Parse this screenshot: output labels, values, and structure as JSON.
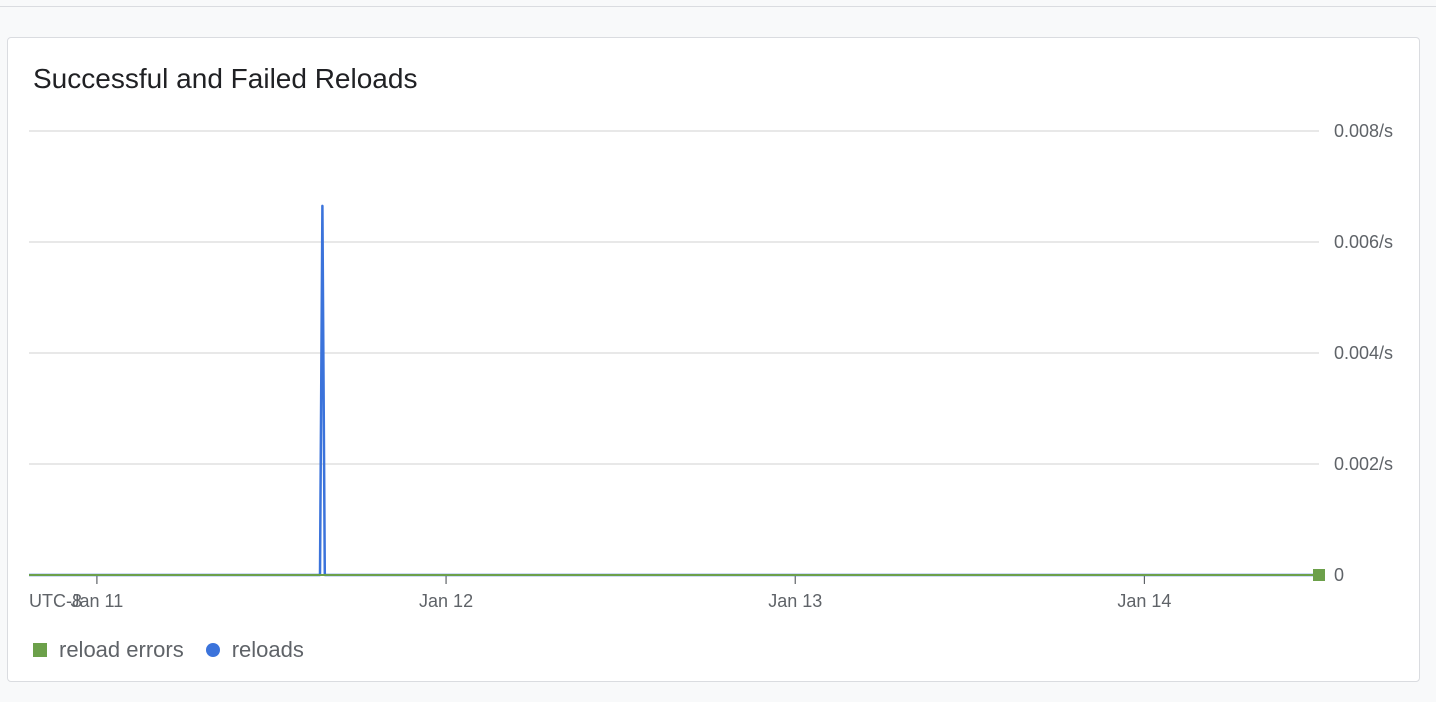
{
  "card": {
    "title": "Successful and Failed Reloads"
  },
  "colors": {
    "reload_errors": "#6ca04a",
    "reloads": "#3b73db",
    "grid": "#e0e0e0"
  },
  "legend": [
    {
      "label": "reload errors",
      "shape": "square",
      "color": "#6ca04a"
    },
    {
      "label": "reloads",
      "shape": "circle",
      "color": "#3b73db"
    }
  ],
  "chart_data": {
    "type": "line",
    "title": "Successful and Failed Reloads",
    "timezone_label": "UTC-8",
    "x_ticks": [
      "Jan 11",
      "Jan 12",
      "Jan 13",
      "Jan 14"
    ],
    "x_range": [
      "Jan 10 19:20",
      "Jan 14 12:00"
    ],
    "y_ticks": [
      "0",
      "0.002/s",
      "0.004/s",
      "0.006/s",
      "0.008/s"
    ],
    "ylim": [
      0,
      0.008
    ],
    "grid": true,
    "legend_position": "bottom-left",
    "series": [
      {
        "name": "reloads",
        "color": "#3b73db",
        "points": [
          {
            "x": "Jan 10 19:20",
            "y": 0
          },
          {
            "x": "Jan 11 15:20",
            "y": 0
          },
          {
            "x": "Jan 11 15:30",
            "y": 0.00665
          },
          {
            "x": "Jan 11 15:40",
            "y": 0
          },
          {
            "x": "Jan 14 12:00",
            "y": 0
          }
        ]
      },
      {
        "name": "reload errors",
        "color": "#6ca04a",
        "points": [
          {
            "x": "Jan 10 19:20",
            "y": 0
          },
          {
            "x": "Jan 14 12:00",
            "y": 0
          }
        ]
      }
    ]
  }
}
